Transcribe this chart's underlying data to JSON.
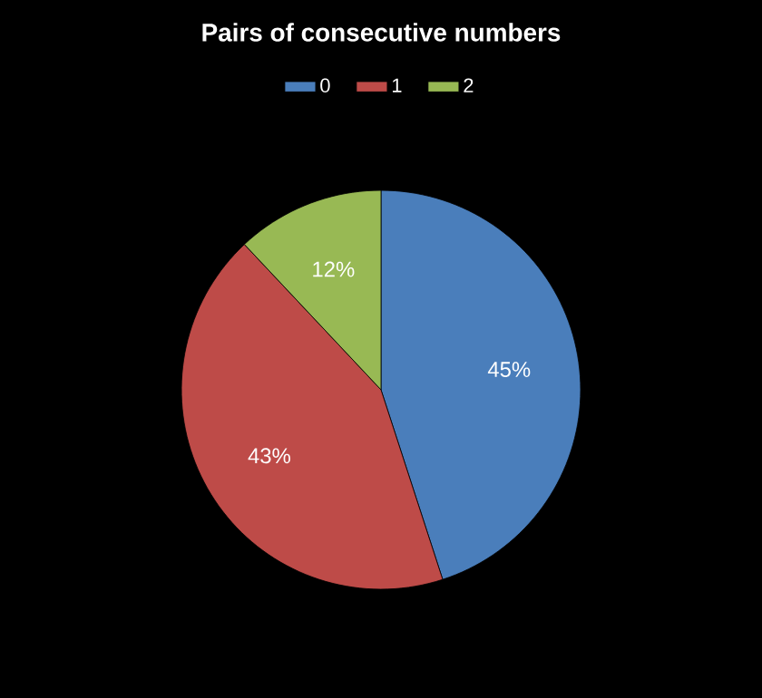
{
  "chart_data": {
    "type": "pie",
    "title": "Pairs of consecutive numbers",
    "categories": [
      "0",
      "1",
      "2"
    ],
    "values": [
      45,
      43,
      12
    ],
    "colors": [
      "#4a7ebb",
      "#be4b48",
      "#98b954"
    ],
    "value_labels": [
      "45%",
      "43%",
      "12%"
    ],
    "legend": "top"
  }
}
